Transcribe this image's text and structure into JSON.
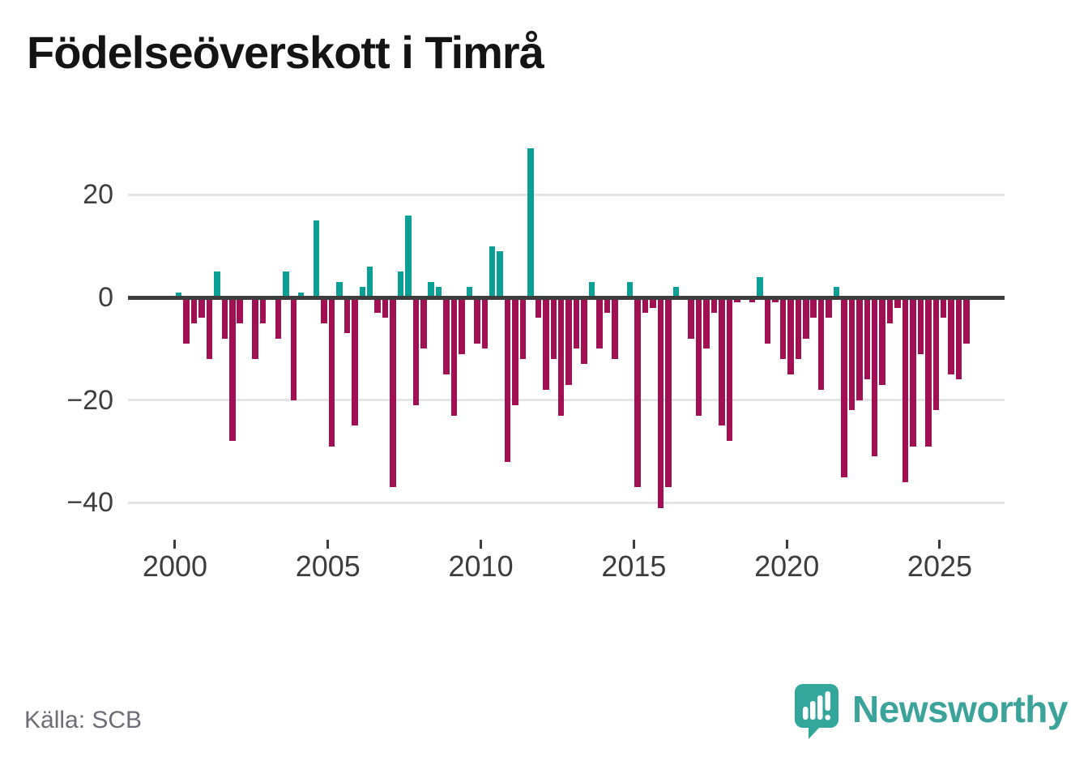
{
  "title": "Födelseöverskott i Timrå",
  "source": "Källa: SCB",
  "branding": {
    "logo_text": "Newsworthy",
    "logo_icon": "bar-chart-exclamation-bubble-icon",
    "logo_color": "#34a79c",
    "logo_text_color": "#3ba39a"
  },
  "chart_data": {
    "type": "bar",
    "title": "Födelseöverskott i Timrå",
    "frequency": "quarterly",
    "start_year": 2000,
    "end_year": 2025,
    "unit": "persons (births minus deaths) per quarter",
    "grid": "horizontal",
    "ylim": [
      -46,
      33
    ],
    "positive_color": "#0ba096",
    "negative_color": "#a01053",
    "y_ticks": [
      {
        "value": 20,
        "label": "20"
      },
      {
        "value": 0,
        "label": "0"
      },
      {
        "value": -20,
        "label": "−20"
      },
      {
        "value": -40,
        "label": "−40"
      }
    ],
    "x_ticks": [
      {
        "label": "2000",
        "quarter_index": 0
      },
      {
        "label": "2005",
        "quarter_index": 20
      },
      {
        "label": "2010",
        "quarter_index": 40
      },
      {
        "label": "2015",
        "quarter_index": 60
      },
      {
        "label": "2020",
        "quarter_index": 80
      },
      {
        "label": "2025",
        "quarter_index": 100
      }
    ],
    "values": [
      1,
      -9,
      -5,
      -4,
      -12,
      5,
      -8,
      -28,
      -5,
      0,
      -12,
      -5,
      0,
      -8,
      5,
      -20,
      1,
      0,
      15,
      -5,
      -29,
      3,
      -7,
      -25,
      2,
      6,
      -3,
      -4,
      -37,
      5,
      16,
      -21,
      -10,
      3,
      2,
      -15,
      -23,
      -11,
      2,
      -9,
      -10,
      10,
      9,
      -32,
      -21,
      -12,
      29,
      -4,
      -18,
      -12,
      -23,
      -17,
      -10,
      -13,
      3,
      -10,
      -3,
      -12,
      0,
      3,
      -37,
      -3,
      -2,
      -41,
      -37,
      2,
      0,
      -8,
      -23,
      -10,
      -3,
      -25,
      -28,
      -1,
      0,
      -1,
      4,
      -9,
      -1,
      -12,
      -15,
      -12,
      -8,
      -4,
      -18,
      -4,
      2,
      -35,
      -22,
      -20,
      -16,
      -31,
      -17,
      -5,
      -2,
      -36,
      -29,
      -11,
      -29,
      -22,
      -4,
      -15,
      -16,
      -9
    ]
  }
}
